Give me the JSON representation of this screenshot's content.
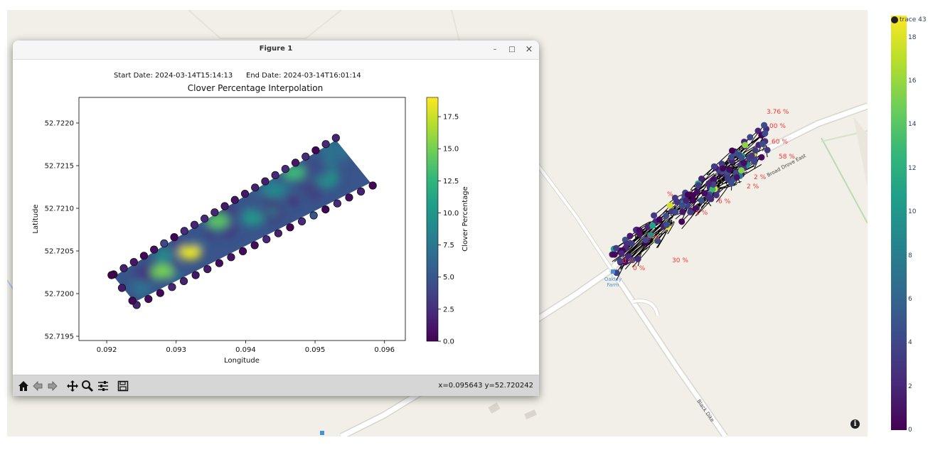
{
  "window": {
    "title": "Figure 1",
    "minimize_label": "–",
    "maximize_label": "□",
    "close_label": "×"
  },
  "figure": {
    "start_date": "Start Date: 2024-03-14T15:14:13",
    "end_date": "End Date: 2024-03-14T16:01:14",
    "title": "Clover Percentage Interpolation",
    "xlabel": "Longitude",
    "ylabel": "Latitude",
    "colorbar_label": "Clover Percentage",
    "x_ticks": [
      "0.092",
      "0.093",
      "0.094",
      "0.095",
      "0.096"
    ],
    "y_ticks": [
      "52.7220",
      "52.7215",
      "52.7210",
      "52.7205",
      "52.7200",
      "52.7195"
    ],
    "colorbar_ticks": [
      "0.0",
      "2.5",
      "5.0",
      "7.5",
      "10.0",
      "12.5",
      "15.0",
      "17.5"
    ]
  },
  "chart_data": {
    "type": "heatmap",
    "title": "Clover Percentage Interpolation",
    "xlabel": "Longitude",
    "ylabel": "Latitude",
    "xlim": [
      0.0916,
      0.0963
    ],
    "ylim": [
      52.71945,
      52.7223
    ],
    "clim": [
      0,
      19
    ],
    "field_corners": [
      [
        0.0921,
        52.7202
      ],
      [
        0.0953,
        52.7218
      ],
      [
        0.0958,
        52.7213
      ],
      [
        0.0924,
        52.7199
      ]
    ],
    "colormap": [
      "#440154",
      "#482878",
      "#3e4a89",
      "#31688e",
      "#26828e",
      "#1f9e89",
      "#35b779",
      "#6ece58",
      "#b5de2b",
      "#fde725"
    ],
    "hotspots": [
      {
        "lon": 0.0932,
        "lat": 52.72048,
        "value": 18.5
      },
      {
        "lon": 0.0928,
        "lat": 52.72026,
        "value": 15
      },
      {
        "lon": 0.0936,
        "lat": 52.72085,
        "value": 14
      },
      {
        "lon": 0.0947,
        "lat": 52.72142,
        "value": 13
      },
      {
        "lon": 0.0941,
        "lat": 52.72088,
        "value": 10
      },
      {
        "lon": 0.0944,
        "lat": 52.7212,
        "value": 9
      },
      {
        "lon": 0.0925,
        "lat": 52.72008,
        "value": 7
      }
    ],
    "base_value": 5
  },
  "toolbar": {
    "coords": "x=0.095643 y=52.720242",
    "home": "home-icon",
    "back": "back-arrow-icon",
    "forward": "forward-arrow-icon",
    "pan": "move-icon",
    "zoom": "magnifier-icon",
    "configure": "sliders-icon",
    "save": "floppy-disk-icon"
  },
  "map": {
    "farm_label_1": "Oakley",
    "farm_label_2": "Farm",
    "road_1": "Broad Drove East",
    "road_2": "Black Dike",
    "percent_labels": [
      "3.76 %",
      "00 %",
      "60 %",
      "58 %",
      "6 %",
      "1 %",
      "2 %",
      "2 %",
      "0 %",
      "30 %",
      "0 %",
      "0 %",
      "%"
    ]
  },
  "colorbar": {
    "legend_label": "trace 43",
    "ticks": [
      "18",
      "16",
      "14",
      "12",
      "10",
      "8",
      "6",
      "4",
      "2",
      "0"
    ],
    "max": 19
  }
}
